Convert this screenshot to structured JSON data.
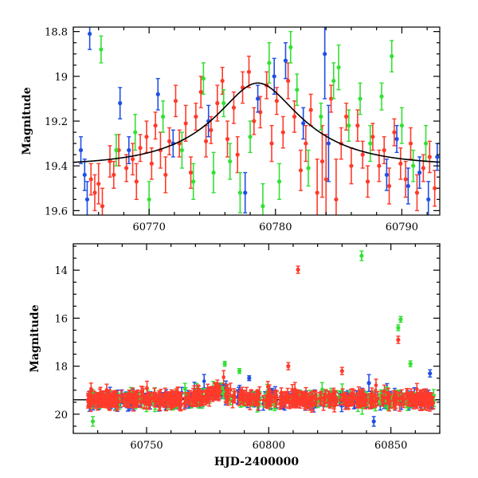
{
  "chart_data": [
    {
      "type": "scatter",
      "title": "",
      "xlabel": "",
      "ylabel": "Magnitude",
      "xlim": [
        60764,
        60793
      ],
      "ylim": [
        19.62,
        18.78
      ],
      "y_inverted": true,
      "grid": false,
      "legend": "none",
      "xticks": [
        60770,
        60780,
        60790
      ],
      "xtick_labels": [
        "60770",
        "60780",
        "60790"
      ],
      "yticks": [
        18.8,
        19,
        19.2,
        19.4,
        19.6
      ],
      "ytick_labels": [
        "18.8",
        "19",
        "19.2",
        "19.4",
        "19.6"
      ],
      "colors": {
        "blue": "#1f4fe6",
        "green": "#33e033",
        "red": "#ff3a2a",
        "model": "#000000"
      },
      "model_curve": {
        "baseline": 19.4,
        "peak_x": 60778.6,
        "peak_mag": 19.03,
        "u0": 0.42,
        "tE": 6.5
      },
      "series": [
        {
          "color": "red",
          "points": [
            [
              60765.4,
              19.46,
              0.07
            ],
            [
              60765.7,
              19.52,
              0.08
            ],
            [
              60766.0,
              19.48,
              0.09
            ],
            [
              60766.3,
              19.58,
              0.08
            ],
            [
              60766.9,
              19.38,
              0.07
            ],
            [
              60767.2,
              19.44,
              0.06
            ],
            [
              60767.6,
              19.33,
              0.07
            ],
            [
              60768.2,
              19.41,
              0.06
            ],
            [
              60768.7,
              19.37,
              0.07
            ],
            [
              60769.0,
              19.47,
              0.08
            ],
            [
              60769.3,
              19.32,
              0.06
            ],
            [
              60769.8,
              19.27,
              0.07
            ],
            [
              60770.2,
              19.39,
              0.07
            ],
            [
              60770.5,
              19.22,
              0.06
            ],
            [
              60770.9,
              19.33,
              0.08
            ],
            [
              60771.3,
              19.44,
              0.08
            ],
            [
              60771.6,
              19.29,
              0.06
            ],
            [
              60772.1,
              19.11,
              0.07
            ],
            [
              60772.4,
              19.3,
              0.06
            ],
            [
              60772.9,
              19.21,
              0.08
            ],
            [
              60773.3,
              19.43,
              0.07
            ],
            [
              60773.7,
              19.18,
              0.06
            ],
            [
              60774.1,
              19.07,
              0.07
            ],
            [
              60774.5,
              19.29,
              0.07
            ],
            [
              60774.9,
              19.24,
              0.06
            ],
            [
              60775.4,
              19.12,
              0.08
            ],
            [
              60775.8,
              19.02,
              0.06
            ],
            [
              60776.2,
              19.28,
              0.08
            ],
            [
              60776.7,
              19.14,
              0.07
            ],
            [
              60777.0,
              19.35,
              0.08
            ],
            [
              60777.4,
              19.05,
              0.07
            ],
            [
              60777.9,
              18.98,
              0.07
            ],
            [
              60778.3,
              19.2,
              0.06
            ],
            [
              60778.8,
              19.16,
              0.07
            ],
            [
              60779.3,
              19.04,
              0.06
            ],
            [
              60779.7,
              19.3,
              0.08
            ],
            [
              60780.1,
              19.11,
              0.06
            ],
            [
              60780.6,
              19.25,
              0.07
            ],
            [
              60781.0,
              19.02,
              0.08
            ],
            [
              60781.5,
              19.18,
              0.07
            ],
            [
              60782.0,
              19.42,
              0.09
            ],
            [
              60782.4,
              19.3,
              0.08
            ],
            [
              60782.8,
              19.15,
              0.07
            ],
            [
              60783.3,
              19.52,
              0.15
            ],
            [
              60783.7,
              19.38,
              0.16
            ],
            [
              60784.0,
              19.46,
              0.2
            ],
            [
              60784.4,
              19.1,
              0.06
            ],
            [
              60784.8,
              19.55,
              0.18
            ],
            [
              60785.2,
              19.3,
              0.07
            ],
            [
              60785.6,
              19.18,
              0.06
            ],
            [
              60786.0,
              19.4,
              0.08
            ],
            [
              60786.5,
              19.22,
              0.07
            ],
            [
              60786.9,
              19.35,
              0.06
            ],
            [
              60787.3,
              19.47,
              0.07
            ],
            [
              60787.7,
              19.27,
              0.06
            ],
            [
              60788.2,
              19.4,
              0.07
            ],
            [
              60788.6,
              19.33,
              0.06
            ],
            [
              60789.0,
              19.49,
              0.08
            ],
            [
              60789.4,
              19.25,
              0.06
            ],
            [
              60789.9,
              19.39,
              0.07
            ],
            [
              60790.3,
              19.46,
              0.08
            ],
            [
              60790.7,
              19.3,
              0.07
            ],
            [
              60791.2,
              19.52,
              0.08
            ],
            [
              60791.7,
              19.41,
              0.06
            ],
            [
              60792.2,
              19.36,
              0.07
            ],
            [
              60792.6,
              19.5,
              0.08
            ]
          ]
        },
        {
          "color": "green",
          "points": [
            [
              60766.2,
              18.88,
              0.06
            ],
            [
              60767.4,
              19.33,
              0.07
            ],
            [
              60768.9,
              19.25,
              0.08
            ],
            [
              60770.0,
              19.55,
              0.08
            ],
            [
              60771.1,
              19.18,
              0.07
            ],
            [
              60772.6,
              19.33,
              0.08
            ],
            [
              60773.5,
              19.47,
              0.08
            ],
            [
              60774.3,
              19.01,
              0.07
            ],
            [
              60775.1,
              19.43,
              0.09
            ],
            [
              60775.9,
              19.12,
              0.06
            ],
            [
              60776.4,
              19.38,
              0.08
            ],
            [
              60777.2,
              19.52,
              0.09
            ],
            [
              60778.0,
              19.27,
              0.07
            ],
            [
              60779.0,
              19.58,
              0.1
            ],
            [
              60779.5,
              18.94,
              0.09
            ],
            [
              60780.3,
              19.47,
              0.08
            ],
            [
              60781.2,
              18.87,
              0.07
            ],
            [
              60781.7,
              19.06,
              0.07
            ],
            [
              60782.6,
              19.41,
              0.08
            ],
            [
              60783.6,
              19.18,
              0.06
            ],
            [
              60784.6,
              19.02,
              0.08
            ],
            [
              60785.0,
              18.96,
              0.1
            ],
            [
              60785.8,
              19.22,
              0.07
            ],
            [
              60786.7,
              19.1,
              0.07
            ],
            [
              60787.5,
              19.3,
              0.08
            ],
            [
              60788.4,
              19.09,
              0.06
            ],
            [
              60789.2,
              18.91,
              0.07
            ],
            [
              60790.0,
              19.22,
              0.08
            ],
            [
              60790.9,
              19.4,
              0.07
            ],
            [
              60791.9,
              19.3,
              0.08
            ]
          ]
        },
        {
          "color": "blue",
          "points": [
            [
              60764.6,
              19.33,
              0.06
            ],
            [
              60764.9,
              19.44,
              0.07
            ],
            [
              60765.1,
              19.55,
              0.08
            ],
            [
              60765.3,
              18.81,
              0.07
            ],
            [
              60767.7,
              19.12,
              0.07
            ],
            [
              60768.4,
              19.33,
              0.06
            ],
            [
              60770.7,
              19.08,
              0.07
            ],
            [
              60771.9,
              19.3,
              0.06
            ],
            [
              60774.7,
              19.2,
              0.07
            ],
            [
              60777.6,
              19.52,
              0.09
            ],
            [
              60778.6,
              19.1,
              0.06
            ],
            [
              60779.9,
              19.0,
              0.08
            ],
            [
              60780.8,
              18.93,
              0.08
            ],
            [
              60782.2,
              19.21,
              0.07
            ],
            [
              60783.9,
              18.9,
              0.2
            ],
            [
              60784.2,
              19.3,
              0.17
            ],
            [
              60788.8,
              19.44,
              0.07
            ],
            [
              60789.6,
              19.28,
              0.06
            ],
            [
              60790.5,
              19.49,
              0.08
            ],
            [
              60791.4,
              19.43,
              0.07
            ],
            [
              60792.1,
              19.55,
              0.08
            ],
            [
              60792.8,
              19.36,
              0.06
            ]
          ]
        }
      ]
    },
    {
      "type": "scatter",
      "title": "",
      "xlabel": "HJD-2400000",
      "ylabel": "Magnitude",
      "xlim": [
        60720,
        60870
      ],
      "ylim": [
        20.8,
        12.9
      ],
      "y_inverted": true,
      "grid": false,
      "legend": "none",
      "xticks": [
        60750,
        60800,
        60850
      ],
      "xtick_labels": [
        "60750",
        "60800",
        "60850"
      ],
      "yticks": [
        14,
        16,
        18,
        20
      ],
      "ytick_labels": [
        "14",
        "16",
        "18",
        "20"
      ],
      "colors": {
        "blue": "#1f4fe6",
        "green": "#33e033",
        "red": "#ff3a2a",
        "model": "#000000"
      },
      "dense_range": [
        60726,
        60868
      ],
      "baseline_mag": 19.45,
      "model_curve": {
        "baseline": 19.4,
        "peak_x": 60778.6,
        "peak_mag": 19.03,
        "u0": 0.42,
        "tE": 6.5
      },
      "outliers": [
        {
          "color": "red",
          "x": 60812,
          "y": 13.98,
          "err": 0.15
        },
        {
          "color": "green",
          "x": 60838,
          "y": 13.4,
          "err": 0.2
        },
        {
          "color": "green",
          "x": 60854,
          "y": 16.05,
          "err": 0.12
        },
        {
          "color": "green",
          "x": 60853,
          "y": 16.4,
          "err": 0.12
        },
        {
          "color": "red",
          "x": 60853,
          "y": 16.9,
          "err": 0.15
        },
        {
          "color": "green",
          "x": 60858,
          "y": 17.9,
          "err": 0.12
        },
        {
          "color": "green",
          "x": 60782,
          "y": 17.9,
          "err": 0.1
        },
        {
          "color": "green",
          "x": 60788,
          "y": 18.2,
          "err": 0.1
        },
        {
          "color": "red",
          "x": 60808,
          "y": 18.0,
          "err": 0.15
        },
        {
          "color": "red",
          "x": 60830,
          "y": 18.2,
          "err": 0.15
        },
        {
          "color": "blue",
          "x": 60841,
          "y": 18.7,
          "err": 0.35
        },
        {
          "color": "green",
          "x": 60728,
          "y": 20.3,
          "err": 0.2
        },
        {
          "color": "blue",
          "x": 60843,
          "y": 20.3,
          "err": 0.2
        },
        {
          "color": "blue",
          "x": 60792,
          "y": 18.5,
          "err": 0.1
        },
        {
          "color": "blue",
          "x": 60866,
          "y": 18.3,
          "err": 0.15
        }
      ]
    }
  ]
}
